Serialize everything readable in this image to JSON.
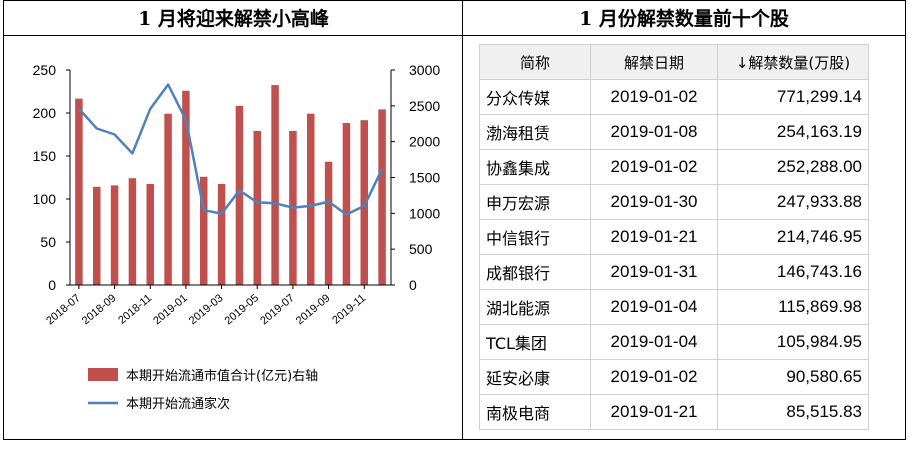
{
  "left_title": "1 月将迎来解禁小高峰",
  "right_title": "1 月份解禁数量前十个股",
  "chart_data": {
    "type": "bar+line",
    "categories": [
      "2018-07",
      "2018-08",
      "2018-09",
      "2018-10",
      "2018-11",
      "2018-12",
      "2019-01",
      "2019-02",
      "2019-03",
      "2019-04",
      "2019-05",
      "2019-06",
      "2019-07",
      "2019-08",
      "2019-09",
      "2019-10",
      "2019-11",
      "2019-12"
    ],
    "x_tick_labels": [
      "2018-07",
      "2018-09",
      "2018-11",
      "2019-01",
      "2019-03",
      "2019-05",
      "2019-07",
      "2019-09",
      "2019-11"
    ],
    "series": [
      {
        "name": "本期开始流通市值合计(亿元)右轴",
        "kind": "bar",
        "axis": "right",
        "color": "#c0504d",
        "values": [
          2600,
          1370,
          1390,
          1490,
          1410,
          2390,
          2710,
          1510,
          1410,
          2500,
          2150,
          2790,
          2150,
          2390,
          1720,
          2260,
          2300,
          2450
        ]
      },
      {
        "name": "本期开始流通家次",
        "kind": "line",
        "axis": "left",
        "color": "#4f81bd",
        "values": [
          205,
          182,
          175,
          153,
          205,
          233,
          192,
          87,
          83,
          110,
          96,
          95,
          90,
          92,
          97,
          82,
          92,
          135
        ]
      }
    ],
    "y_left": {
      "min": 0,
      "max": 250,
      "ticks": [
        "0",
        "50",
        "100",
        "150",
        "200",
        "250"
      ]
    },
    "y_right": {
      "min": 0,
      "max": 3000,
      "ticks": [
        "0",
        "500",
        "1000",
        "1500",
        "2000",
        "2500",
        "3000"
      ]
    },
    "legend_position": "bottom"
  },
  "table": {
    "headers": [
      "简称",
      "解禁日期",
      "↓解禁数量(万股)"
    ],
    "rows": [
      {
        "name": "分众传媒",
        "date": "2019-01-02",
        "qty": "771,299.14"
      },
      {
        "name": "渤海租赁",
        "date": "2019-01-08",
        "qty": "254,163.19"
      },
      {
        "name": "协鑫集成",
        "date": "2019-01-02",
        "qty": "252,288.00"
      },
      {
        "name": "申万宏源",
        "date": "2019-01-30",
        "qty": "247,933.88"
      },
      {
        "name": "中信银行",
        "date": "2019-01-21",
        "qty": "214,746.95"
      },
      {
        "name": "成都银行",
        "date": "2019-01-31",
        "qty": "146,743.16"
      },
      {
        "name": "湖北能源",
        "date": "2019-01-04",
        "qty": "115,869.98"
      },
      {
        "name": "TCL集团",
        "date": "2019-01-04",
        "qty": "105,984.95"
      },
      {
        "name": "延安必康",
        "date": "2019-01-02",
        "qty": "90,580.65"
      },
      {
        "name": "南极电商",
        "date": "2019-01-21",
        "qty": "85,515.83"
      }
    ]
  }
}
